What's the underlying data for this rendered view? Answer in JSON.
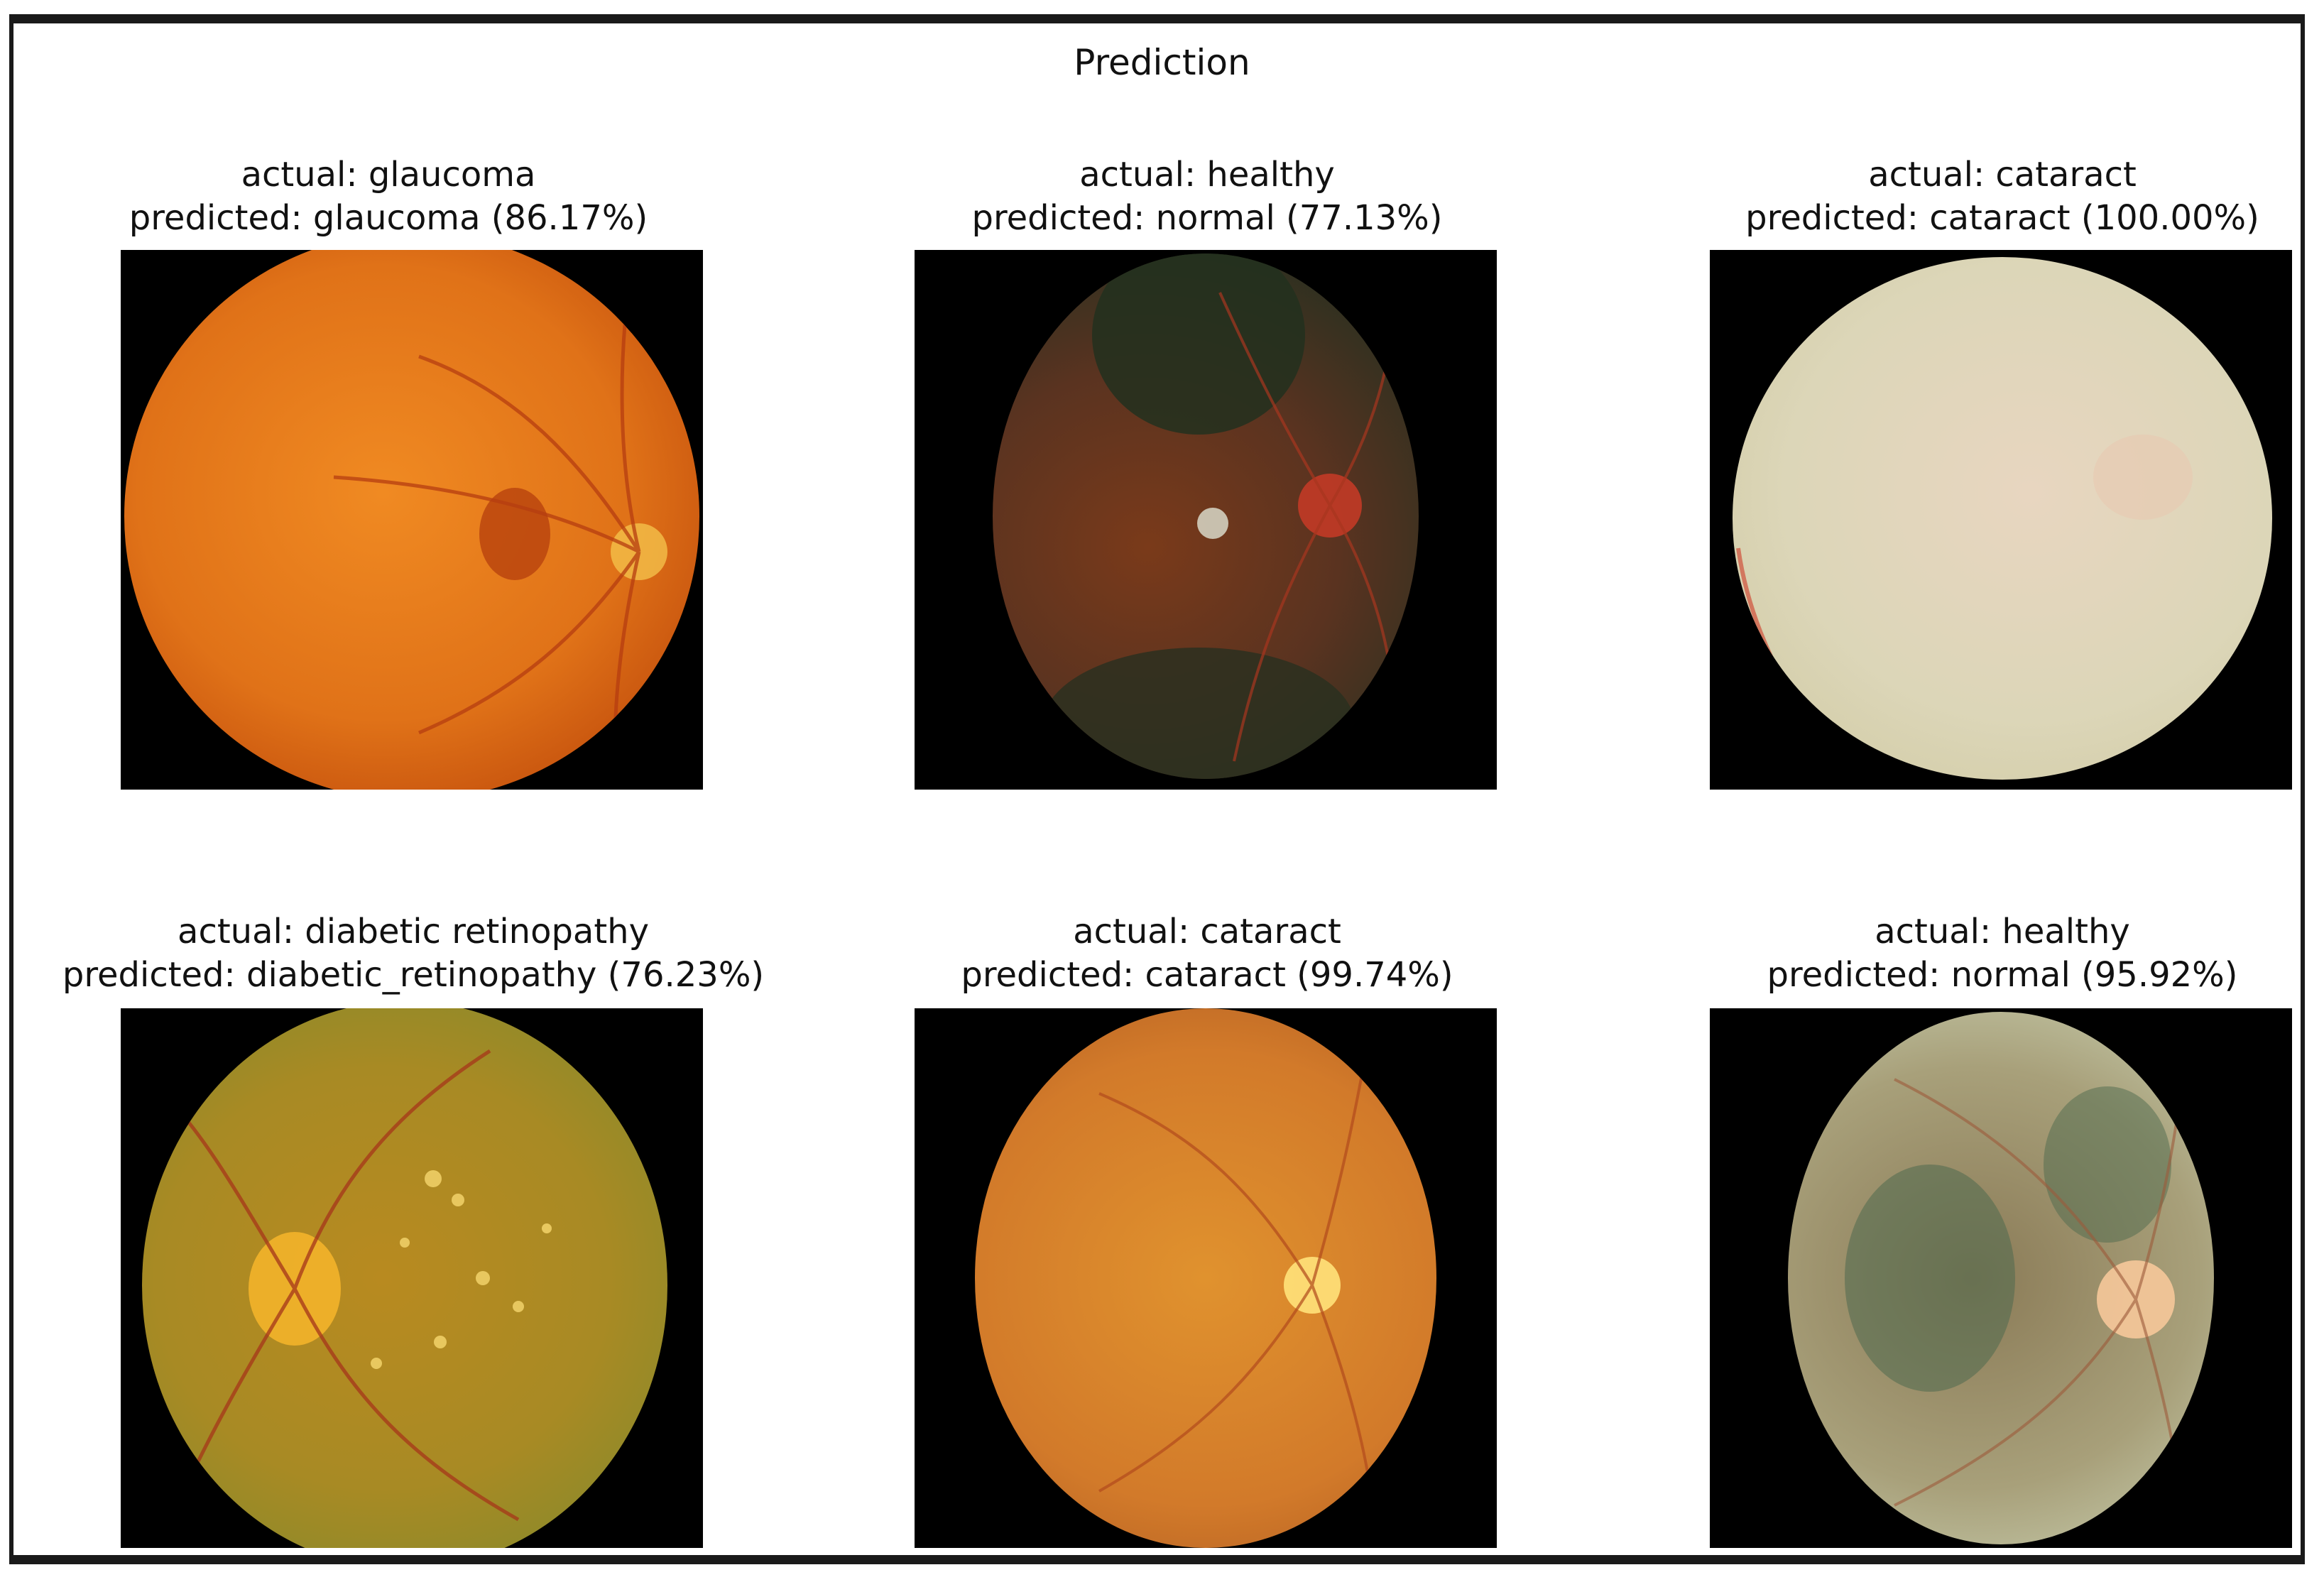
{
  "figure": {
    "title": "Prediction"
  },
  "panels": [
    {
      "actual": "actual: glaucoma",
      "predicted": "predicted: glaucoma (86.17%)"
    },
    {
      "actual": "actual: healthy",
      "predicted": "predicted: normal (77.13%)"
    },
    {
      "actual": "actual: cataract",
      "predicted": "predicted: cataract (100.00%)"
    },
    {
      "actual": "actual: diabetic retinopathy",
      "predicted": "predicted: diabetic_retinopathy (76.23%)"
    },
    {
      "actual": "actual: cataract",
      "predicted": "predicted: cataract (99.74%)"
    },
    {
      "actual": "actual: healthy",
      "predicted": "predicted: normal (95.92%)"
    }
  ]
}
